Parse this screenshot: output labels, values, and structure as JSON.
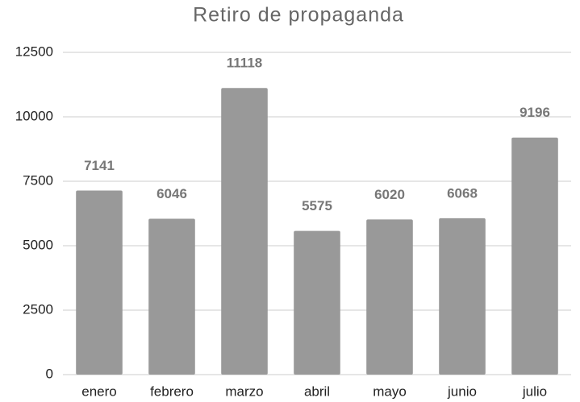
{
  "chart_data": {
    "type": "bar",
    "title": "Retiro de propaganda",
    "categories": [
      "enero",
      "febrero",
      "marzo",
      "abril",
      "mayo",
      "junio",
      "julio"
    ],
    "values": [
      7141,
      6046,
      11118,
      5575,
      6020,
      6068,
      9196
    ],
    "color": "#999999",
    "ylim": [
      0,
      12500
    ],
    "yticks": [
      0,
      2500,
      5000,
      7500,
      10000,
      12500
    ],
    "grid": true
  }
}
